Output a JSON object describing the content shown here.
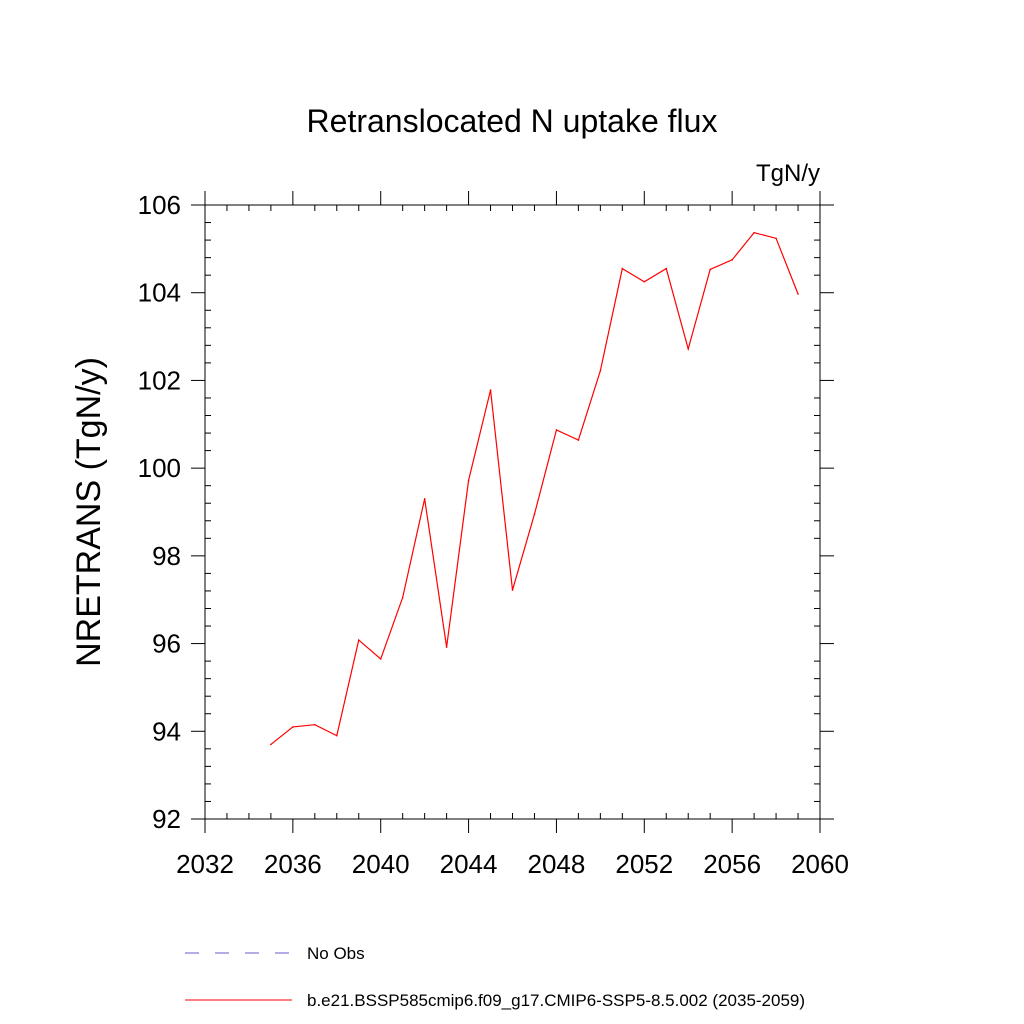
{
  "chart_data": {
    "type": "line",
    "title": "Retranslocated N uptake flux",
    "units": "TgN/y",
    "xlabel": "",
    "ylabel": "NRETRANS  (TgN/y)",
    "xlim": [
      2032,
      2060
    ],
    "ylim": [
      92,
      106
    ],
    "xticks": [
      2032,
      2036,
      2040,
      2044,
      2048,
      2052,
      2056,
      2060
    ],
    "yticks": [
      92,
      94,
      96,
      98,
      100,
      102,
      104,
      106
    ],
    "xtick_labels": [
      "2032",
      "2036",
      "2040",
      "2044",
      "2048",
      "2052",
      "2056",
      "2060"
    ],
    "ytick_labels": [
      "92",
      "94",
      "96",
      "98",
      "100",
      "102",
      "104",
      "106"
    ],
    "grid": false,
    "legend_placement": "bottom",
    "series": [
      {
        "name": "b.e21.BSSP585cmip6.f09_g17.CMIP6-SSP5-8.5.002 (2035-2059)",
        "color": "#ff0000",
        "style": "solid",
        "x": [
          2035,
          2036,
          2037,
          2038,
          2039,
          2040,
          2041,
          2042,
          2043,
          2044,
          2045,
          2046,
          2047,
          2048,
          2049,
          2050,
          2051,
          2052,
          2053,
          2054,
          2055,
          2056,
          2057,
          2058,
          2059
        ],
        "y": [
          93.7,
          94.1,
          94.15,
          93.9,
          96.08,
          95.65,
          97.05,
          99.3,
          95.92,
          99.72,
          101.78,
          97.22,
          98.95,
          100.87,
          100.64,
          102.22,
          104.55,
          104.25,
          104.55,
          102.72,
          104.53,
          104.75,
          105.37,
          105.24,
          103.97
        ]
      }
    ],
    "legend": [
      {
        "label": "No Obs",
        "color": "#6a5acd",
        "style": "dashed"
      },
      {
        "label": "b.e21.BSSP585cmip6.f09_g17.CMIP6-SSP5-8.5.002 (2035-2059)",
        "color": "#ff0000",
        "style": "solid"
      }
    ]
  }
}
